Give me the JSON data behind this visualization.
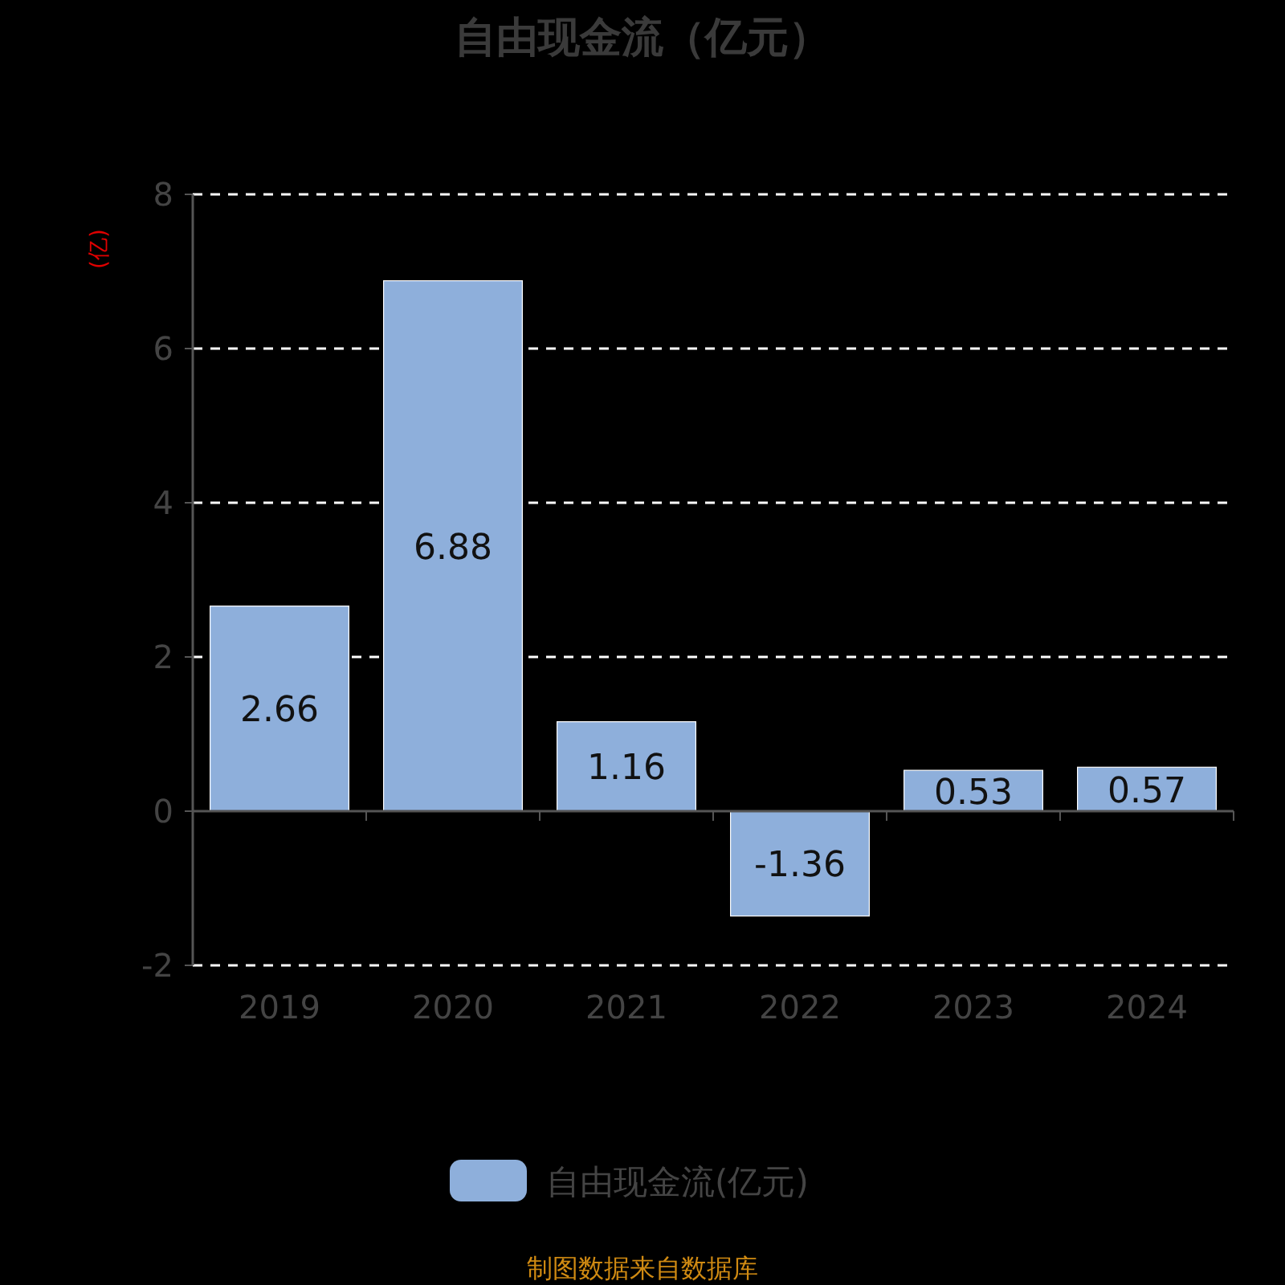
{
  "chart_data": {
    "type": "bar",
    "title": "自由现金流（亿元）",
    "ylabel": "(亿)",
    "categories": [
      "2019",
      "2020",
      "2021",
      "2022",
      "2023",
      "2024"
    ],
    "series": [
      {
        "name": "自由现金流(亿元)",
        "color": "#8eafdb",
        "values": [
          2.66,
          6.88,
          1.16,
          -1.36,
          0.53,
          0.57
        ]
      }
    ],
    "ylim": [
      -2,
      8
    ],
    "yticks": [
      -2,
      0,
      2,
      4,
      6,
      8
    ],
    "grid": "y",
    "legend": "bottom",
    "data_labels": true,
    "annotations": [
      "制图数据来自数据库"
    ]
  }
}
